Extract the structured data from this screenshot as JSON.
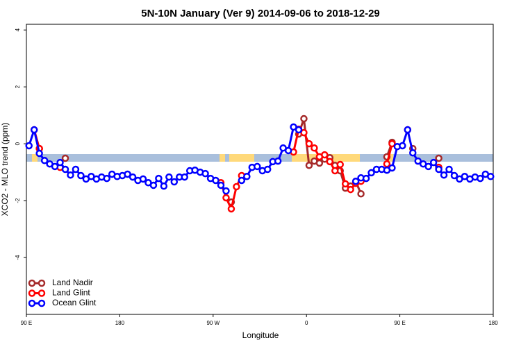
{
  "chart_data": {
    "type": "line",
    "title": "5N-10N January (Ver 9)   2014-09-06 to 2018-12-29",
    "x_label": "Longitude",
    "y_label": "XCO2 - MLO trend (ppm)",
    "xlim": [
      90,
      540
    ],
    "xticks": [
      {
        "value": 90,
        "label": "90 E"
      },
      180,
      {
        "value": 270,
        "label": "90 W"
      },
      {
        "value": 360,
        "label": "0"
      },
      {
        "value": 450,
        "label": "90 E"
      },
      {
        "value": 540,
        "label": "180"
      }
    ],
    "ylim": [
      -6.0,
      4.2
    ],
    "yticks": [
      -4,
      -2,
      0,
      2,
      4
    ],
    "legend": "bottom-left",
    "x": [
      92.5,
      97.5,
      102.5,
      107.5,
      112.5,
      117.5,
      122.5,
      127.5,
      132.5,
      137.5,
      142.5,
      147.5,
      152.5,
      157.5,
      162.5,
      167.5,
      172.5,
      177.5,
      182.5,
      187.5,
      192.5,
      197.5,
      202.5,
      207.5,
      212.5,
      217.5,
      222.5,
      227.5,
      232.5,
      237.5,
      242.5,
      247.5,
      252.5,
      257.5,
      262.5,
      267.5,
      272.5,
      277.5,
      282.5,
      287.5,
      292.5,
      297.5,
      302.5,
      307.5,
      312.5,
      317.5,
      322.5,
      327.5,
      332.5,
      337.5,
      342.5,
      347.5,
      352.5,
      357.5,
      362.5,
      367.5,
      372.5,
      377.5,
      382.5,
      387.5,
      392.5,
      397.5,
      402.5,
      407.5,
      412.5,
      417.5,
      422.5,
      427.5,
      432.5,
      437.5,
      442.5,
      447.5,
      452.5,
      457.5,
      462.5,
      467.5,
      472.5,
      477.5,
      482.5,
      487.5,
      492.5,
      497.5,
      502.5,
      507.5,
      512.5,
      517.5,
      522.5,
      527.5,
      532.5,
      537.5
    ],
    "series": [
      {
        "name": "Land Nadir",
        "color": "#a52a2a",
        "values": [
          null,
          null,
          -0.17,
          null,
          null,
          null,
          null,
          -0.51,
          null,
          null,
          null,
          null,
          null,
          null,
          null,
          null,
          null,
          null,
          null,
          null,
          null,
          null,
          null,
          null,
          null,
          null,
          null,
          null,
          null,
          null,
          null,
          null,
          null,
          null,
          null,
          null,
          null,
          null,
          null,
          -2.05,
          null,
          null,
          null,
          null,
          null,
          null,
          null,
          null,
          null,
          null,
          null,
          null,
          0.34,
          0.88,
          -0.76,
          -0.61,
          -0.68,
          -0.54,
          -0.49,
          -0.76,
          -0.95,
          -1.56,
          -1.49,
          -1.32,
          -1.76,
          null,
          null,
          null,
          null,
          -0.46,
          0.05,
          null,
          null,
          null,
          -0.17,
          null,
          null,
          null,
          null,
          -0.51,
          null,
          null,
          null,
          null,
          null,
          null,
          null,
          null,
          null,
          null
        ]
      },
      {
        "name": "Land Glint",
        "color": "#ff0000",
        "values": [
          null,
          0.49,
          -0.17,
          null,
          null,
          null,
          -0.83,
          null,
          null,
          null,
          null,
          null,
          null,
          null,
          null,
          null,
          null,
          null,
          null,
          null,
          null,
          null,
          null,
          null,
          null,
          null,
          null,
          null,
          null,
          null,
          null,
          null,
          null,
          null,
          null,
          null,
          null,
          -1.37,
          -1.9,
          -2.29,
          -1.51,
          -1.12,
          null,
          null,
          null,
          null,
          null,
          null,
          null,
          null,
          null,
          -0.29,
          0.51,
          0.39,
          0.0,
          -0.15,
          -0.46,
          -0.39,
          -0.63,
          -0.95,
          -0.73,
          -1.41,
          -1.61,
          -1.39,
          -1.32,
          null,
          null,
          null,
          null,
          -0.71,
          0.0,
          null,
          null,
          0.49,
          null,
          null,
          null,
          null,
          null,
          -0.83,
          null,
          null,
          null,
          null,
          null,
          null,
          null,
          null,
          null,
          null
        ]
      },
      {
        "name": "Ocean Glint",
        "color": "#0000ff",
        "values": [
          -0.07,
          0.49,
          -0.34,
          -0.59,
          -0.71,
          -0.8,
          -0.66,
          -0.9,
          -1.1,
          -0.9,
          -1.12,
          -1.24,
          -1.15,
          -1.24,
          -1.17,
          -1.22,
          -1.07,
          -1.15,
          -1.12,
          -1.07,
          -1.17,
          -1.29,
          -1.24,
          -1.37,
          -1.46,
          -1.22,
          -1.49,
          -1.17,
          -1.34,
          -1.17,
          -1.17,
          -0.95,
          -0.93,
          -1.0,
          -1.05,
          -1.22,
          -1.29,
          -1.46,
          -1.66,
          null,
          null,
          -1.29,
          -1.15,
          -0.83,
          -0.8,
          -0.95,
          -0.9,
          -0.63,
          -0.61,
          -0.15,
          -0.24,
          0.59,
          0.49,
          null,
          null,
          null,
          null,
          null,
          null,
          null,
          null,
          null,
          null,
          -1.32,
          -1.2,
          -1.22,
          -1.02,
          -0.9,
          -0.9,
          -0.93,
          -0.85,
          -0.1,
          -0.07,
          0.49,
          -0.32,
          -0.61,
          -0.71,
          -0.8,
          -0.66,
          -0.9,
          -1.1,
          -0.9,
          -1.12,
          -1.24,
          -1.15,
          -1.24,
          -1.17,
          -1.22,
          -1.07,
          -1.15
        ]
      }
    ]
  }
}
